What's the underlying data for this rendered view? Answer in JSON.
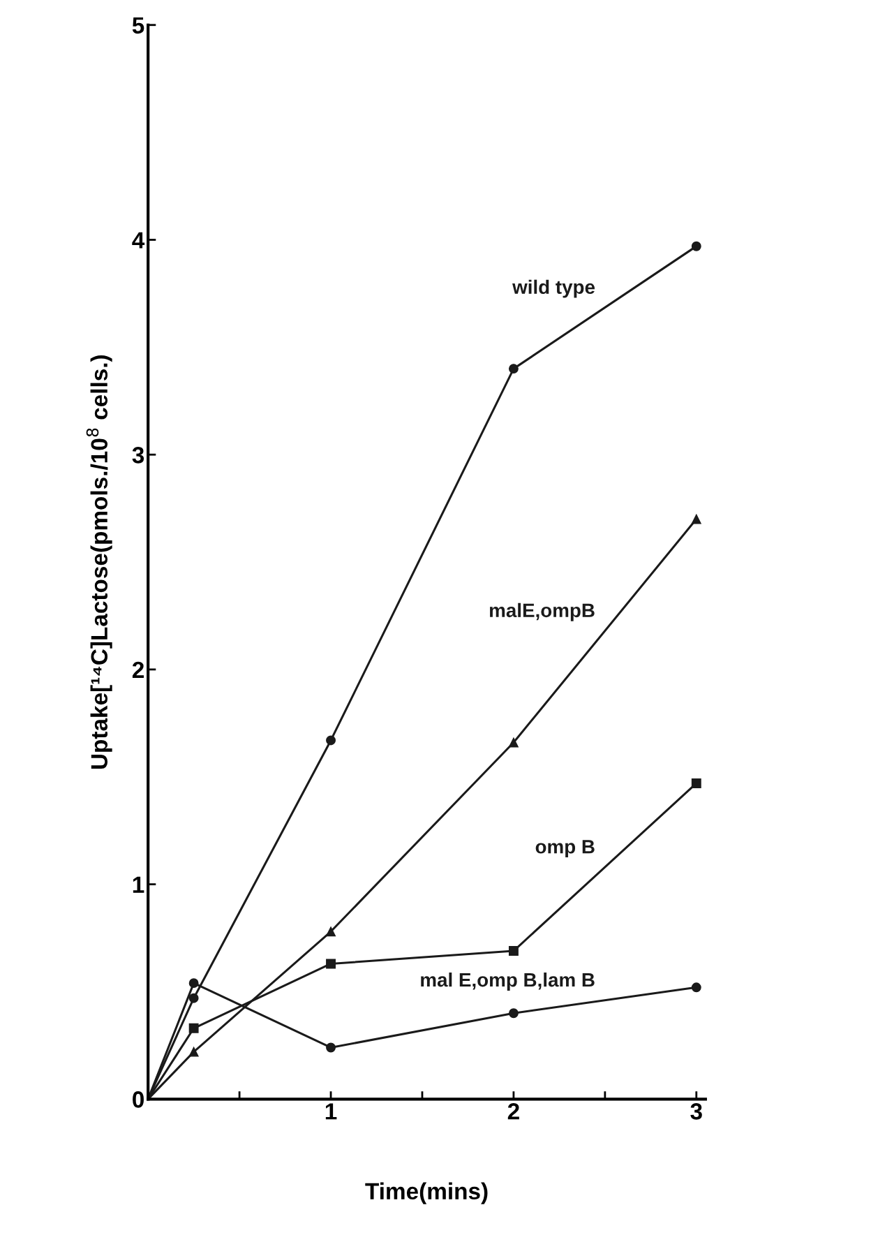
{
  "chart_data": {
    "type": "line",
    "xlabel": "Time(mins)",
    "ylabel": "Uptake[¹⁴C]Lactose(pmols./10$^{8}$ cells.)",
    "xlim": [
      0,
      3.05
    ],
    "ylim": [
      0,
      5
    ],
    "xticks": [
      {
        "value": 0.5,
        "label": null
      },
      1,
      {
        "value": 1.5,
        "label": null
      },
      2,
      {
        "value": 2.5,
        "label": null
      },
      3
    ],
    "yticks": [
      0,
      1,
      2,
      3,
      4,
      5
    ],
    "grid": false,
    "legend": false,
    "series": [
      {
        "name": "wild type",
        "color": "#1a1a1a",
        "marker": "circle",
        "x": [
          0,
          0.25,
          1,
          2,
          3
        ],
        "values": [
          0,
          0.47,
          1.67,
          3.4,
          3.97
        ]
      },
      {
        "name": "malE,ompB",
        "color": "#1a1a1a",
        "marker": "triangle",
        "x": [
          0,
          0.25,
          1,
          2,
          3
        ],
        "values": [
          0,
          0.22,
          0.78,
          1.66,
          2.7
        ]
      },
      {
        "name": "omp B",
        "color": "#1a1a1a",
        "marker": "square",
        "x": [
          0,
          0.25,
          1,
          2,
          3
        ],
        "values": [
          0,
          0.33,
          0.63,
          0.69,
          1.47
        ]
      },
      {
        "name": "mal E,omp B,lam B",
        "color": "#1a1a1a",
        "marker": "circle",
        "x": [
          0,
          0.25,
          1,
          2,
          3
        ],
        "values": [
          0,
          0.54,
          0.24,
          0.4,
          0.52
        ]
      }
    ]
  }
}
